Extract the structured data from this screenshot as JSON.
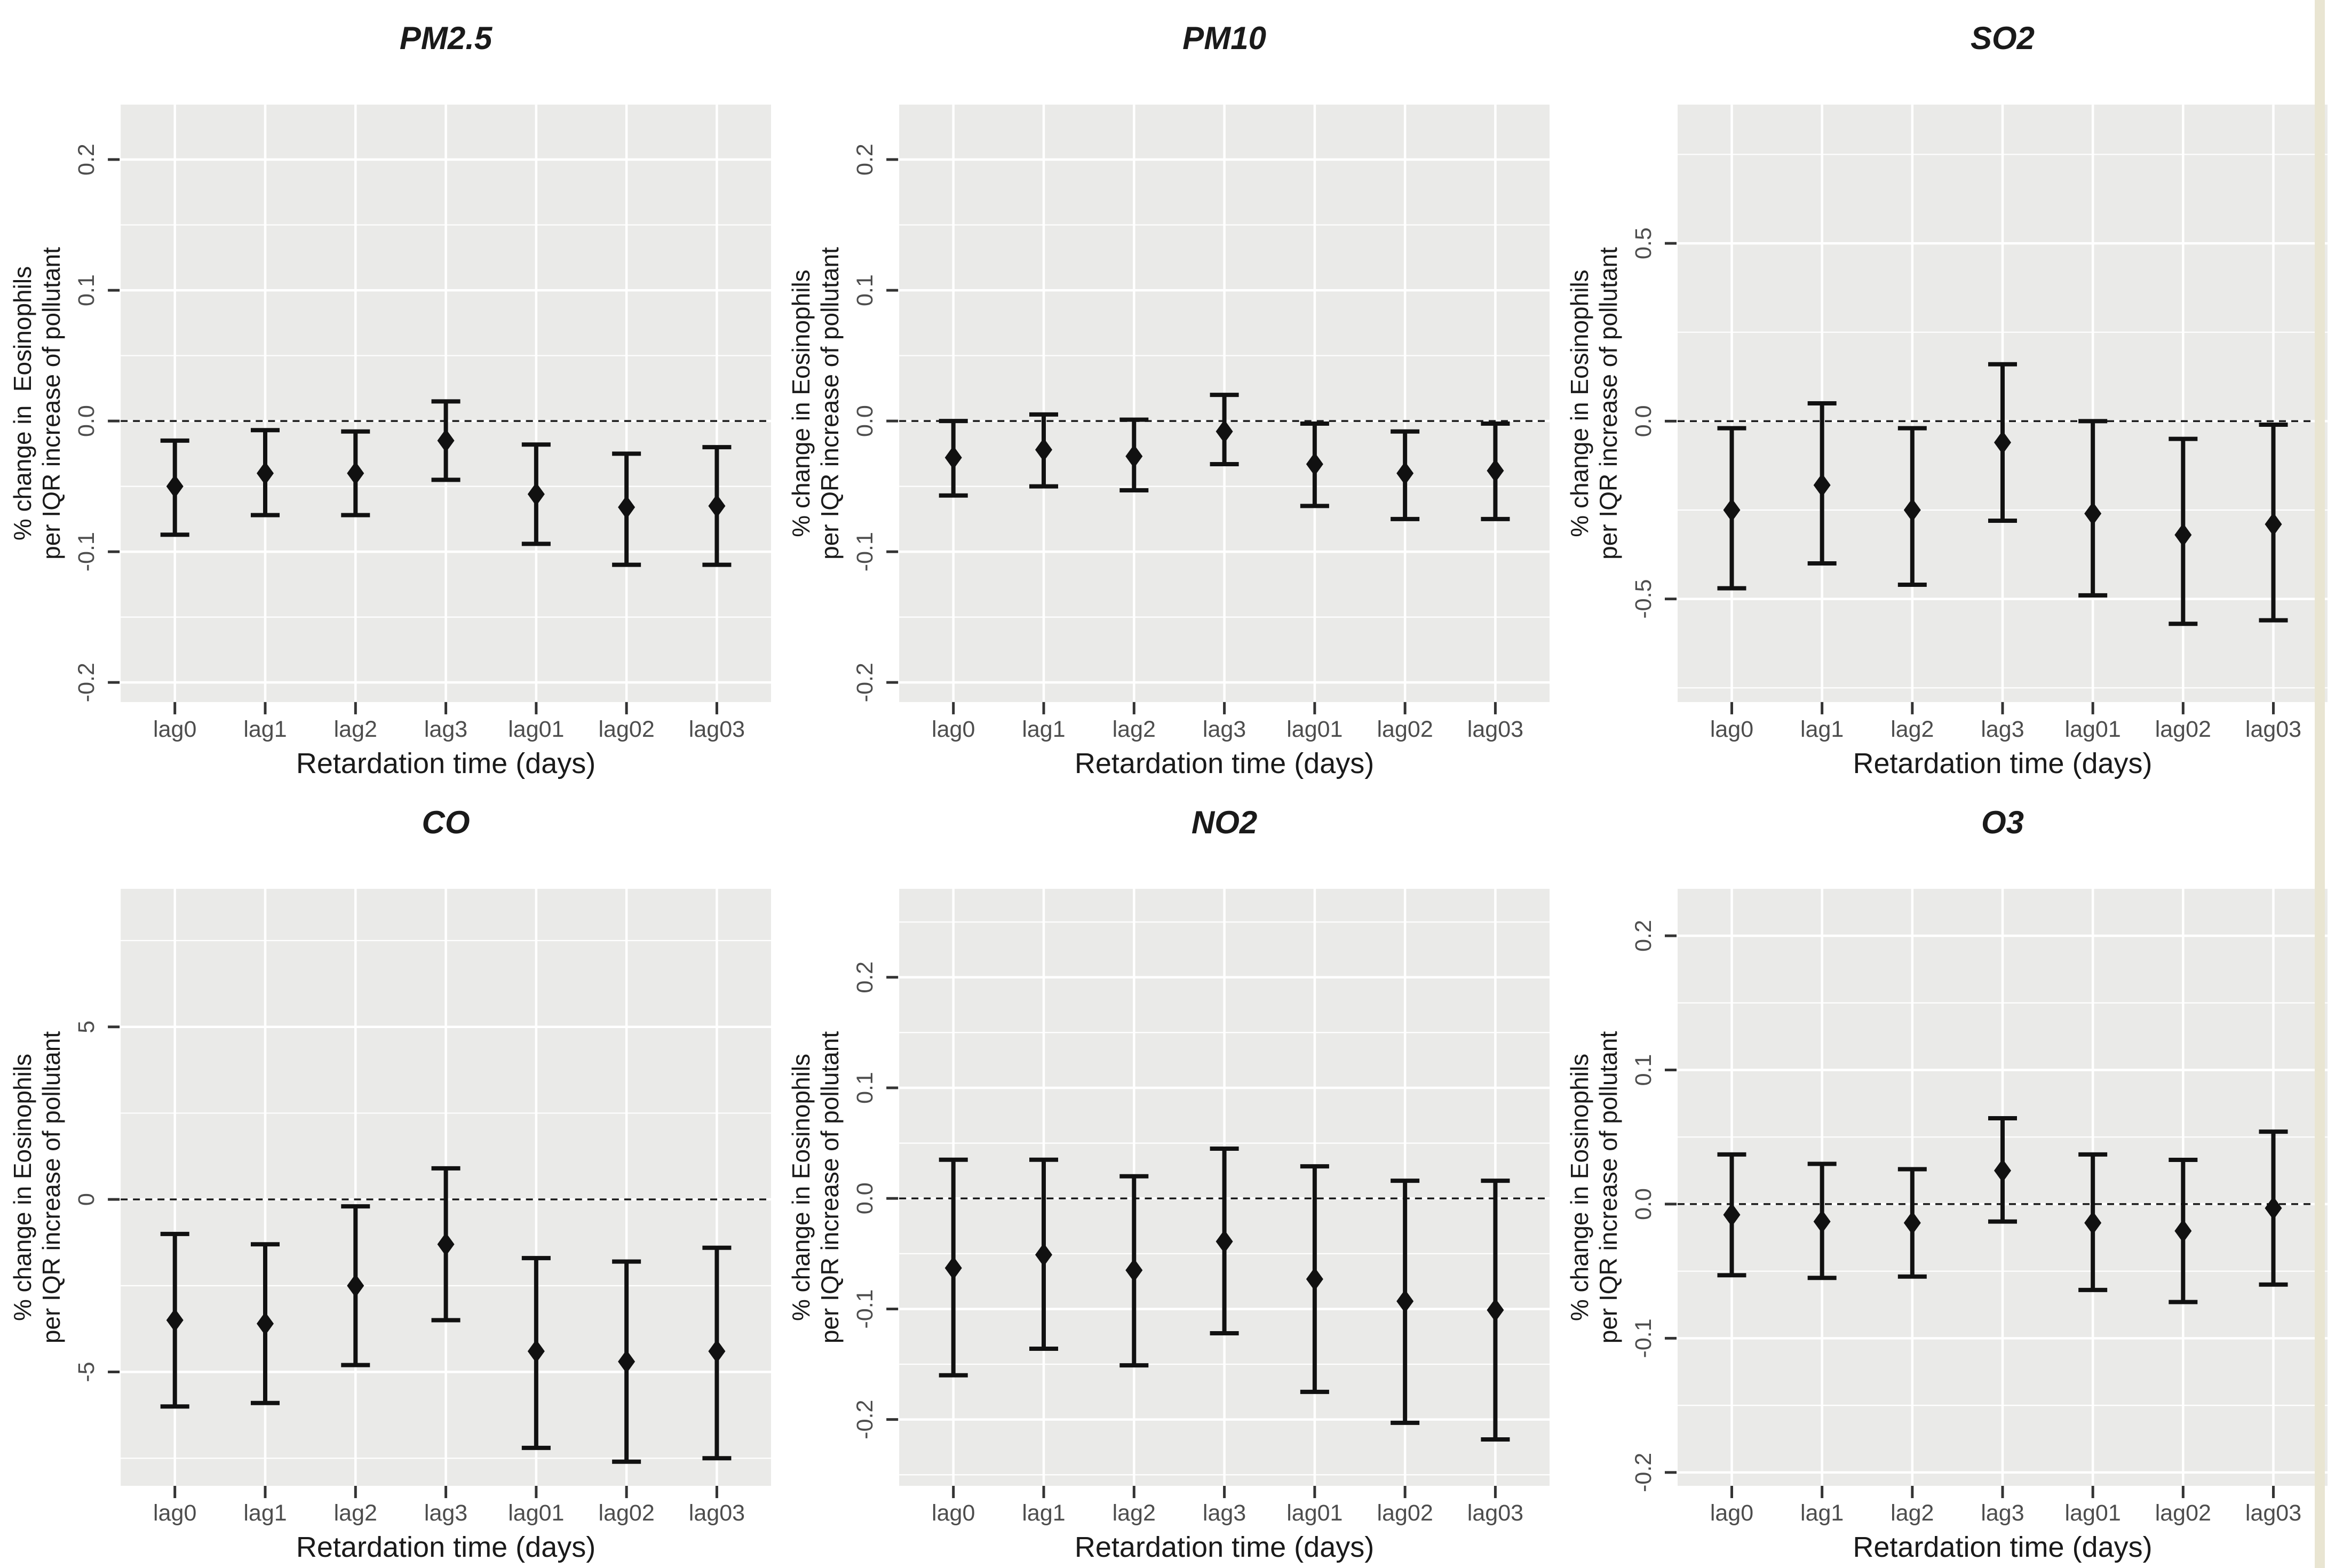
{
  "figure": {
    "xlabel": "Retardation time (days)",
    "ylabel_line1": "% change in Eosinophils",
    "ylabel_line1_pm25": "% change in  Eosinophils",
    "ylabel_line2": "per IQR increase of pollutant",
    "categories": [
      "lag0",
      "lag1",
      "lag2",
      "lag3",
      "lag01",
      "lag02",
      "lag03"
    ]
  },
  "colors": {
    "page_bg": "#ffffff",
    "panel_bg": "#eaeae8",
    "grid": "#ffffff",
    "bar": "#111111",
    "zero_line": "#1a1a1a",
    "tick_mark": "#333333",
    "tick_label": "#4d4d4d",
    "axis_title": "#1a1a1a",
    "panel_title": "#1a1a1a",
    "right_strip": "#e9e5d2"
  },
  "right_strip": {
    "x": 4338,
    "width": 19
  },
  "chart_data": [
    {
      "type": "errorbar",
      "title": "PM2.5",
      "ylabel_line1": "% change in  Eosinophils",
      "ylabel_line2": "per IQR increase of pollutant",
      "xlabel": "Retardation time (days)",
      "categories": [
        "lag0",
        "lag1",
        "lag2",
        "lag3",
        "lag01",
        "lag02",
        "lag03"
      ],
      "yticks": [
        0.2,
        0.1,
        0.0,
        -0.1,
        -0.2
      ],
      "ytick_labels": [
        "0.2",
        "0.1",
        "0.0",
        "-0.1",
        "-0.2"
      ],
      "yticks_minor": [
        0.15,
        0.05,
        -0.05,
        -0.15
      ],
      "ylim": [
        -0.215,
        0.242
      ],
      "zero_line": 0,
      "series": {
        "estimate": [
          -0.05,
          -0.04,
          -0.04,
          -0.015,
          -0.056,
          -0.066,
          -0.065
        ],
        "lower": [
          -0.087,
          -0.072,
          -0.072,
          -0.045,
          -0.094,
          -0.11,
          -0.11
        ],
        "upper": [
          -0.015,
          -0.007,
          -0.008,
          0.015,
          -0.018,
          -0.025,
          -0.02
        ]
      },
      "legend": false,
      "grid": true
    },
    {
      "type": "errorbar",
      "title": "PM10",
      "ylabel_line1": "% change in Eosinophils",
      "ylabel_line2": "per IQR increase of pollutant",
      "xlabel": "Retardation time (days)",
      "categories": [
        "lag0",
        "lag1",
        "lag2",
        "lag3",
        "lag01",
        "lag02",
        "lag03"
      ],
      "yticks": [
        0.2,
        0.1,
        0.0,
        -0.1,
        -0.2
      ],
      "ytick_labels": [
        "0.2",
        "0.1",
        "0.0",
        "-0.1",
        "-0.2"
      ],
      "yticks_minor": [
        0.15,
        0.05,
        -0.05,
        -0.15
      ],
      "ylim": [
        -0.215,
        0.242
      ],
      "zero_line": 0,
      "series": {
        "estimate": [
          -0.028,
          -0.022,
          -0.027,
          -0.008,
          -0.033,
          -0.04,
          -0.038
        ],
        "lower": [
          -0.057,
          -0.05,
          -0.053,
          -0.033,
          -0.065,
          -0.075,
          -0.075
        ],
        "upper": [
          0.0,
          0.005,
          0.001,
          0.02,
          -0.002,
          -0.008,
          -0.002
        ]
      },
      "legend": false,
      "grid": true
    },
    {
      "type": "errorbar",
      "title": "SO2",
      "ylabel_line1": "% change in Eosinophils",
      "ylabel_line2": "per IQR increase of pollutant",
      "xlabel": "Retardation time (days)",
      "categories": [
        "lag0",
        "lag1",
        "lag2",
        "lag3",
        "lag01",
        "lag02",
        "lag03"
      ],
      "yticks": [
        0.5,
        0.0,
        -0.5
      ],
      "ytick_labels": [
        "0.5",
        "0.0",
        "-0.5"
      ],
      "yticks_minor": [
        0.75,
        0.25,
        -0.25,
        -0.75
      ],
      "ylim": [
        -0.79,
        0.89
      ],
      "zero_line": 0,
      "series": {
        "estimate": [
          -0.25,
          -0.18,
          -0.25,
          -0.06,
          -0.26,
          -0.32,
          -0.29
        ],
        "lower": [
          -0.47,
          -0.4,
          -0.46,
          -0.28,
          -0.49,
          -0.57,
          -0.56
        ],
        "upper": [
          -0.02,
          0.05,
          -0.02,
          0.16,
          0.0,
          -0.05,
          -0.01
        ]
      },
      "legend": false,
      "grid": true
    },
    {
      "type": "errorbar",
      "title": "CO",
      "ylabel_line1": "% change in Eosinophils",
      "ylabel_line2": "per IQR increase of pollutant",
      "xlabel": "Retardation time (days)",
      "categories": [
        "lag0",
        "lag1",
        "lag2",
        "lag3",
        "lag01",
        "lag02",
        "lag03"
      ],
      "yticks": [
        5,
        0,
        -5
      ],
      "ytick_labels": [
        "5",
        "0",
        "-5"
      ],
      "yticks_minor": [
        7.5,
        2.5,
        -2.5,
        -7.5
      ],
      "ylim": [
        -8.3,
        9.0
      ],
      "zero_line": 0,
      "series": {
        "estimate": [
          -3.5,
          -3.6,
          -2.5,
          -1.3,
          -4.4,
          -4.7,
          -4.4
        ],
        "lower": [
          -6.0,
          -5.9,
          -4.8,
          -3.5,
          -7.2,
          -7.6,
          -7.5
        ],
        "upper": [
          -1.0,
          -1.3,
          -0.2,
          0.9,
          -1.7,
          -1.8,
          -1.4
        ]
      },
      "legend": false,
      "grid": true
    },
    {
      "type": "errorbar",
      "title": "NO2",
      "ylabel_line1": "% change in Eosinophils",
      "ylabel_line2": "per IQR increase of pollutant",
      "xlabel": "Retardation time (days)",
      "categories": [
        "lag0",
        "lag1",
        "lag2",
        "lag3",
        "lag01",
        "lag02",
        "lag03"
      ],
      "yticks": [
        0.2,
        0.1,
        0.0,
        -0.1,
        -0.2
      ],
      "ytick_labels": [
        "0.2",
        "0.1",
        "0.0",
        "-0.1",
        "-0.2"
      ],
      "yticks_minor": [
        0.25,
        0.15,
        0.05,
        -0.05,
        -0.15,
        -0.25
      ],
      "ylim": [
        -0.26,
        0.28
      ],
      "zero_line": 0,
      "series": {
        "estimate": [
          -0.063,
          -0.051,
          -0.065,
          -0.039,
          -0.073,
          -0.093,
          -0.101
        ],
        "lower": [
          -0.16,
          -0.136,
          -0.151,
          -0.122,
          -0.175,
          -0.203,
          -0.218
        ],
        "upper": [
          0.035,
          0.035,
          0.02,
          0.045,
          0.029,
          0.016,
          0.016
        ]
      },
      "legend": false,
      "grid": true
    },
    {
      "type": "errorbar",
      "title": "O3",
      "ylabel_line1": "% change in Eosinophils",
      "ylabel_line2": "per IQR increase of pollutant",
      "xlabel": "Retardation time (days)",
      "categories": [
        "lag0",
        "lag1",
        "lag2",
        "lag3",
        "lag01",
        "lag02",
        "lag03"
      ],
      "yticks": [
        0.2,
        0.1,
        0.0,
        -0.1,
        -0.2
      ],
      "ytick_labels": [
        "0.2",
        "0.1",
        "0.0",
        "-0.1",
        "-0.2"
      ],
      "yticks_minor": [
        0.15,
        0.05,
        -0.05,
        -0.15
      ],
      "ylim": [
        -0.21,
        0.235
      ],
      "zero_line": 0,
      "series": {
        "estimate": [
          -0.008,
          -0.013,
          -0.014,
          0.025,
          -0.014,
          -0.02,
          -0.003
        ],
        "lower": [
          -0.053,
          -0.055,
          -0.054,
          -0.013,
          -0.064,
          -0.073,
          -0.06
        ],
        "upper": [
          0.037,
          0.03,
          0.026,
          0.064,
          0.037,
          0.033,
          0.054
        ]
      },
      "legend": false,
      "grid": true
    }
  ]
}
